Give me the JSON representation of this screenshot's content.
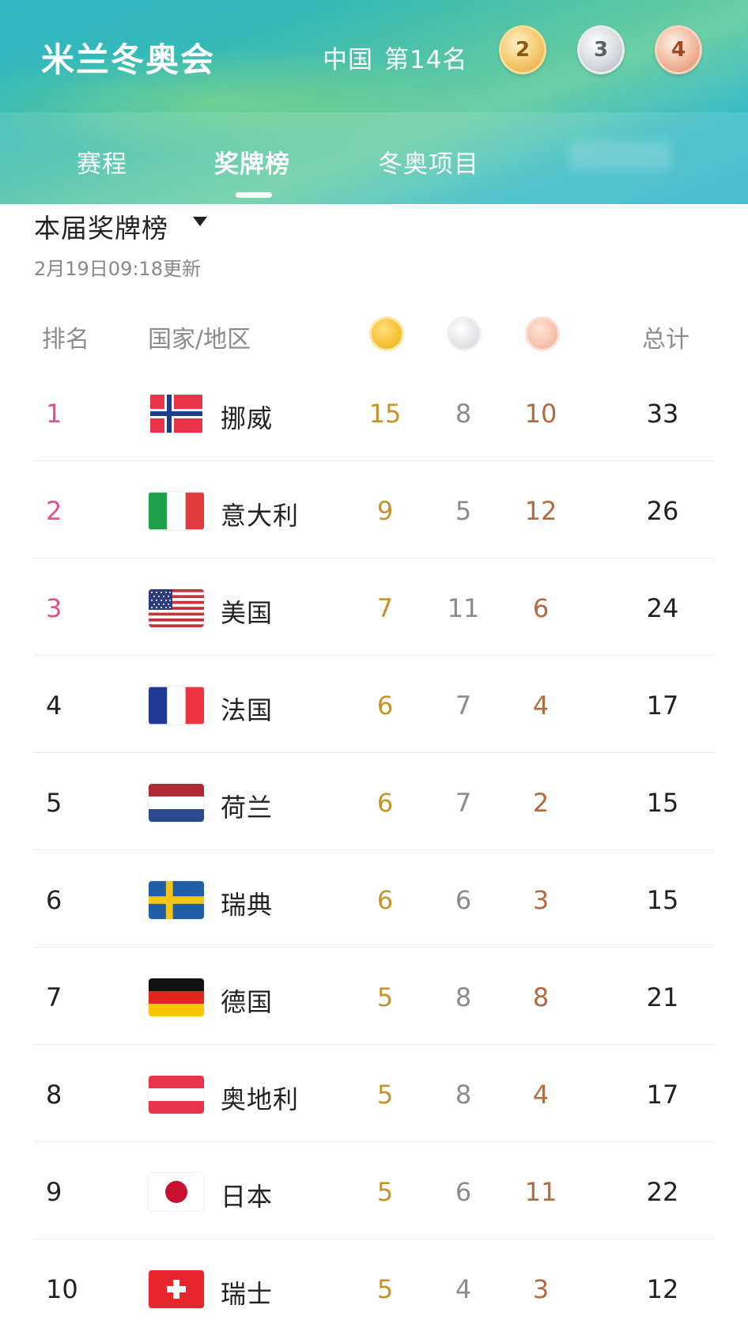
{
  "header": {
    "title": "米兰冬奥会",
    "china_label": "中国",
    "china_rank": "第14名",
    "china_medals": {
      "gold": "2",
      "silver": "3",
      "bronze": "4"
    }
  },
  "tabs": [
    {
      "label": "赛程"
    },
    {
      "label": "奖牌榜"
    },
    {
      "label": "冬奥项目"
    }
  ],
  "section": {
    "title": "本届奖牌榜",
    "updated": "2月19日09:18更新"
  },
  "columns": {
    "rank": "排名",
    "country": "国家/地区",
    "total": "总计"
  },
  "rows": [
    {
      "rank": "1",
      "name": "挪威",
      "flag": "norway-flag",
      "gold": "15",
      "silver": "8",
      "bronze": "10",
      "total": "33"
    },
    {
      "rank": "2",
      "name": "意大利",
      "flag": "italy-flag",
      "gold": "9",
      "silver": "5",
      "bronze": "12",
      "total": "26"
    },
    {
      "rank": "3",
      "name": "美国",
      "flag": "usa-flag",
      "gold": "7",
      "silver": "11",
      "bronze": "6",
      "total": "24"
    },
    {
      "rank": "4",
      "name": "法国",
      "flag": "france-flag",
      "gold": "6",
      "silver": "7",
      "bronze": "4",
      "total": "17"
    },
    {
      "rank": "5",
      "name": "荷兰",
      "flag": "netherlands-flag",
      "gold": "6",
      "silver": "7",
      "bronze": "2",
      "total": "15"
    },
    {
      "rank": "6",
      "name": "瑞典",
      "flag": "sweden-flag",
      "gold": "6",
      "silver": "6",
      "bronze": "3",
      "total": "15"
    },
    {
      "rank": "7",
      "name": "德国",
      "flag": "germany-flag",
      "gold": "5",
      "silver": "8",
      "bronze": "8",
      "total": "21"
    },
    {
      "rank": "8",
      "name": "奥地利",
      "flag": "austria-flag",
      "gold": "5",
      "silver": "8",
      "bronze": "4",
      "total": "17"
    },
    {
      "rank": "9",
      "name": "日本",
      "flag": "japan-flag",
      "gold": "5",
      "silver": "6",
      "bronze": "11",
      "total": "22"
    },
    {
      "rank": "10",
      "name": "瑞士",
      "flag": "switzerland-flag",
      "gold": "5",
      "silver": "4",
      "bronze": "3",
      "total": "12"
    }
  ],
  "colors": {
    "top_rank": "#e0508a",
    "gold_text": "#c69329",
    "silver_text": "#8c8c8c",
    "bronze_text": "#b36a3e"
  }
}
